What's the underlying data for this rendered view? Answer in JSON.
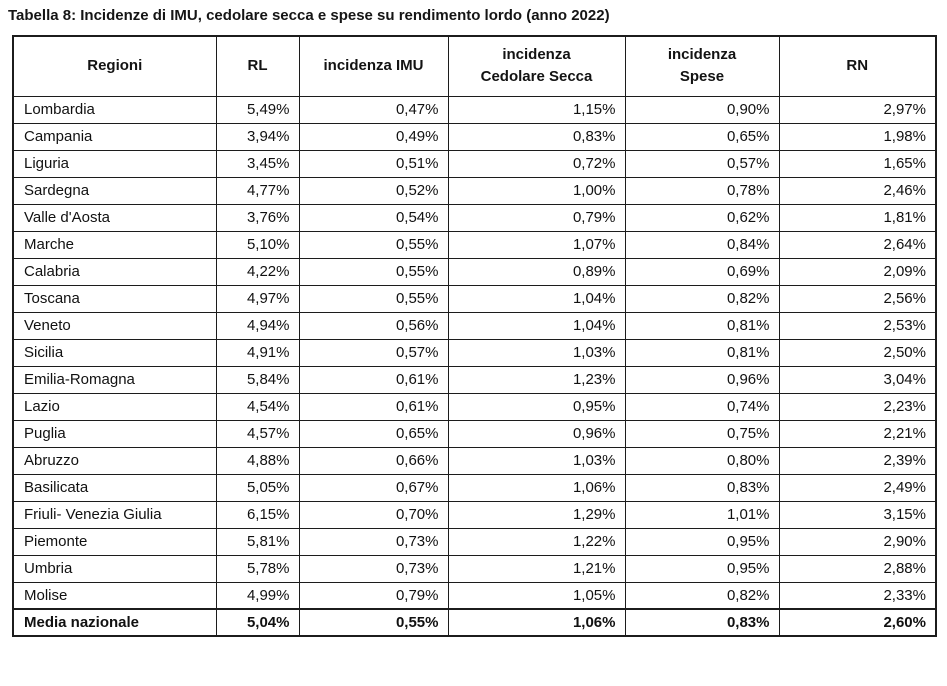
{
  "title": "Tabella 8: Incidenze di IMU, cedolare secca e spese su rendimento lordo (anno 2022)",
  "colors": {
    "background": "#ffffff",
    "border": "#1c1c1c",
    "text": "#111111"
  },
  "table": {
    "headers": [
      {
        "lines": [
          "Regioni"
        ]
      },
      {
        "lines": [
          "RL"
        ]
      },
      {
        "lines": [
          "incidenza IMU"
        ]
      },
      {
        "lines": [
          "incidenza",
          "Cedolare Secca"
        ]
      },
      {
        "lines": [
          "incidenza",
          "Spese"
        ]
      },
      {
        "lines": [
          "RN"
        ]
      }
    ],
    "rows": [
      [
        "Lombardia",
        "5,49%",
        "0,47%",
        "1,15%",
        "0,90%",
        "2,97%"
      ],
      [
        "Campania",
        "3,94%",
        "0,49%",
        "0,83%",
        "0,65%",
        "1,98%"
      ],
      [
        "Liguria",
        "3,45%",
        "0,51%",
        "0,72%",
        "0,57%",
        "1,65%"
      ],
      [
        "Sardegna",
        "4,77%",
        "0,52%",
        "1,00%",
        "0,78%",
        "2,46%"
      ],
      [
        "Valle d'Aosta",
        "3,76%",
        "0,54%",
        "0,79%",
        "0,62%",
        "1,81%"
      ],
      [
        "Marche",
        "5,10%",
        "0,55%",
        "1,07%",
        "0,84%",
        "2,64%"
      ],
      [
        "Calabria",
        "4,22%",
        "0,55%",
        "0,89%",
        "0,69%",
        "2,09%"
      ],
      [
        "Toscana",
        "4,97%",
        "0,55%",
        "1,04%",
        "0,82%",
        "2,56%"
      ],
      [
        "Veneto",
        "4,94%",
        "0,56%",
        "1,04%",
        "0,81%",
        "2,53%"
      ],
      [
        "Sicilia",
        "4,91%",
        "0,57%",
        "1,03%",
        "0,81%",
        "2,50%"
      ],
      [
        "Emilia-Romagna",
        "5,84%",
        "0,61%",
        "1,23%",
        "0,96%",
        "3,04%"
      ],
      [
        "Lazio",
        "4,54%",
        "0,61%",
        "0,95%",
        "0,74%",
        "2,23%"
      ],
      [
        "Puglia",
        "4,57%",
        "0,65%",
        "0,96%",
        "0,75%",
        "2,21%"
      ],
      [
        "Abruzzo",
        "4,88%",
        "0,66%",
        "1,03%",
        "0,80%",
        "2,39%"
      ],
      [
        "Basilicata",
        "5,05%",
        "0,67%",
        "1,06%",
        "0,83%",
        "2,49%"
      ],
      [
        "Friuli- Venezia Giulia",
        "6,15%",
        "0,70%",
        "1,29%",
        "1,01%",
        "3,15%"
      ],
      [
        "Piemonte",
        "5,81%",
        "0,73%",
        "1,22%",
        "0,95%",
        "2,90%"
      ],
      [
        "Umbria",
        "5,78%",
        "0,73%",
        "1,21%",
        "0,95%",
        "2,88%"
      ],
      [
        "Molise",
        "4,99%",
        "0,79%",
        "1,05%",
        "0,82%",
        "2,33%"
      ]
    ],
    "total_row": [
      "Media nazionale",
      "5,04%",
      "0,55%",
      "1,06%",
      "0,83%",
      "2,60%"
    ]
  }
}
